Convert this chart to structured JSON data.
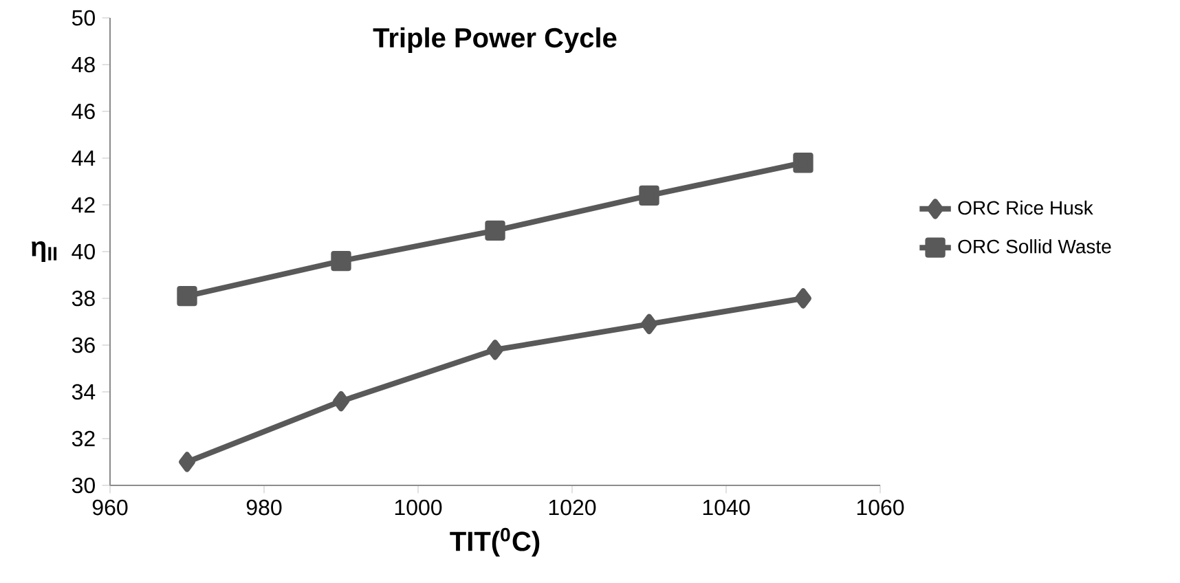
{
  "chart_data": {
    "type": "line",
    "title": "Triple Power Cycle",
    "xlabel": "TIT($^{0}$C)",
    "ylabel": "η$_{II}$",
    "x": [
      970,
      990,
      1010,
      1030,
      1050
    ],
    "series": [
      {
        "name": "ORC Rice Husk",
        "color": "#595959",
        "marker": "diamond",
        "values": [
          31.0,
          33.6,
          35.8,
          36.9,
          38.0
        ]
      },
      {
        "name": "ORC Sollid Waste",
        "color": "#595959",
        "marker": "square",
        "values": [
          38.1,
          39.6,
          40.9,
          42.4,
          43.8
        ]
      }
    ],
    "xlim": [
      960,
      1060
    ],
    "xticks": [
      960,
      980,
      1000,
      1020,
      1040,
      1060
    ],
    "ylim": [
      30,
      50
    ],
    "yticks": [
      30,
      32,
      34,
      36,
      38,
      40,
      42,
      44,
      46,
      48,
      50
    ],
    "grid": false,
    "legend": "right",
    "line_style": "solid"
  }
}
